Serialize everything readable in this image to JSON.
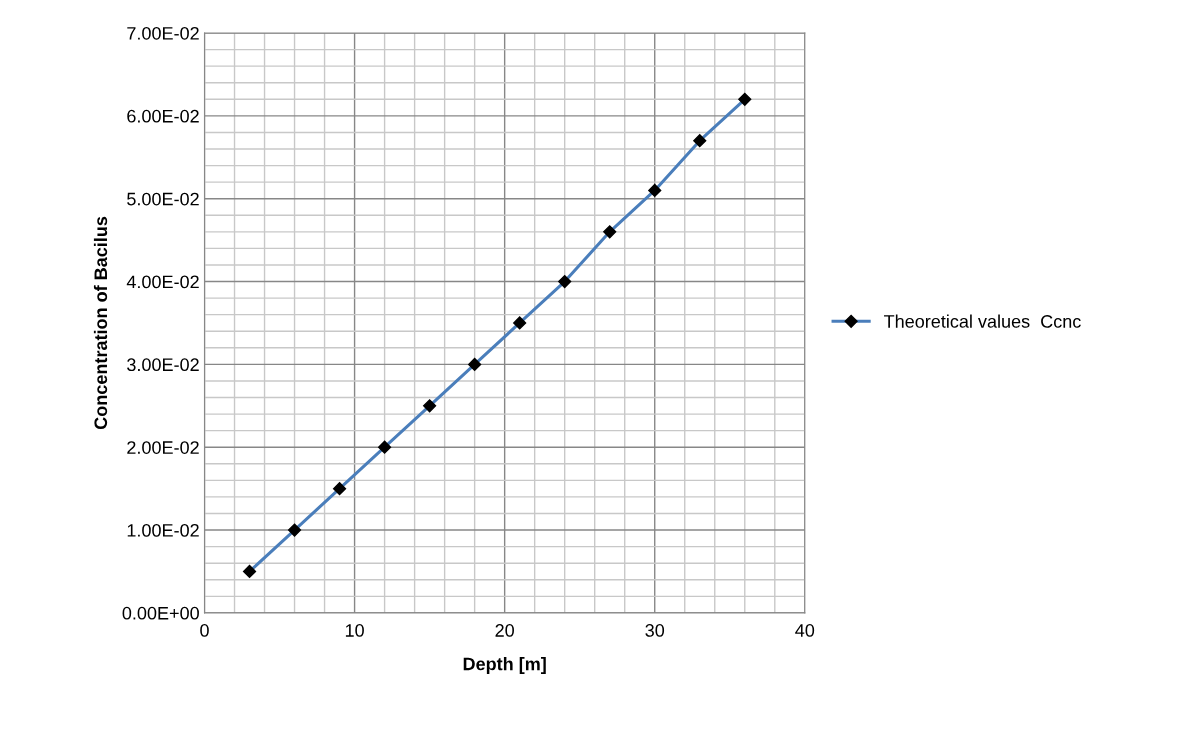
{
  "chart_data": {
    "type": "line",
    "xlabel": "Depth [m]",
    "ylabel": "Concentration of Bacilus",
    "x": [
      3,
      6,
      9,
      12,
      15,
      18,
      21,
      24,
      27,
      30,
      33,
      36
    ],
    "series": [
      {
        "name": "Theoretical values  Ccnc",
        "color": "#4a7ebb",
        "values": [
          0.005,
          0.01,
          0.015,
          0.02,
          0.025,
          0.03,
          0.035,
          0.04,
          0.046,
          0.051,
          0.057,
          0.062
        ]
      }
    ],
    "xlim": [
      0,
      40
    ],
    "xticks": [
      0,
      {
        "value": 2,
        "label": null
      },
      {
        "value": 4,
        "label": null
      },
      {
        "value": 6,
        "label": null
      },
      {
        "value": 8,
        "label": null
      },
      10,
      {
        "value": 12,
        "label": null
      },
      {
        "value": 14,
        "label": null
      },
      {
        "value": 16,
        "label": null
      },
      {
        "value": 18,
        "label": null
      },
      20,
      {
        "value": 22,
        "label": null
      },
      {
        "value": 24,
        "label": null
      },
      {
        "value": 26,
        "label": null
      },
      {
        "value": 28,
        "label": null
      },
      30,
      {
        "value": 32,
        "label": null
      },
      {
        "value": 34,
        "label": null
      },
      {
        "value": 36,
        "label": null
      },
      {
        "value": 38,
        "label": null
      },
      40
    ],
    "ylim": [
      0,
      0.07
    ],
    "yticks": [
      {
        "value": 0,
        "label": "0.00E+00"
      },
      {
        "value": 0.002,
        "label": null
      },
      {
        "value": 0.004,
        "label": null
      },
      {
        "value": 0.006,
        "label": null
      },
      {
        "value": 0.008,
        "label": null
      },
      {
        "value": 0.01,
        "label": "1.00E-02"
      },
      {
        "value": 0.012,
        "label": null
      },
      {
        "value": 0.014,
        "label": null
      },
      {
        "value": 0.016,
        "label": null
      },
      {
        "value": 0.018,
        "label": null
      },
      {
        "value": 0.02,
        "label": "2.00E-02"
      },
      {
        "value": 0.022,
        "label": null
      },
      {
        "value": 0.024,
        "label": null
      },
      {
        "value": 0.026,
        "label": null
      },
      {
        "value": 0.028,
        "label": null
      },
      {
        "value": 0.03,
        "label": "3.00E-02"
      },
      {
        "value": 0.032,
        "label": null
      },
      {
        "value": 0.034,
        "label": null
      },
      {
        "value": 0.036,
        "label": null
      },
      {
        "value": 0.038,
        "label": null
      },
      {
        "value": 0.04,
        "label": "4.00E-02"
      },
      {
        "value": 0.042,
        "label": null
      },
      {
        "value": 0.044,
        "label": null
      },
      {
        "value": 0.046,
        "label": null
      },
      {
        "value": 0.048,
        "label": null
      },
      {
        "value": 0.05,
        "label": "5.00E-02"
      },
      {
        "value": 0.052,
        "label": null
      },
      {
        "value": 0.054,
        "label": null
      },
      {
        "value": 0.056,
        "label": null
      },
      {
        "value": 0.058,
        "label": null
      },
      {
        "value": 0.06,
        "label": "6.00E-02"
      },
      {
        "value": 0.062,
        "label": null
      },
      {
        "value": 0.064,
        "label": null
      },
      {
        "value": 0.066,
        "label": null
      },
      {
        "value": 0.068,
        "label": null
      },
      {
        "value": 0.07,
        "label": "7.00E-02"
      }
    ],
    "grid": true,
    "legend": "right",
    "marker": "diamond",
    "line_style": "solid"
  }
}
